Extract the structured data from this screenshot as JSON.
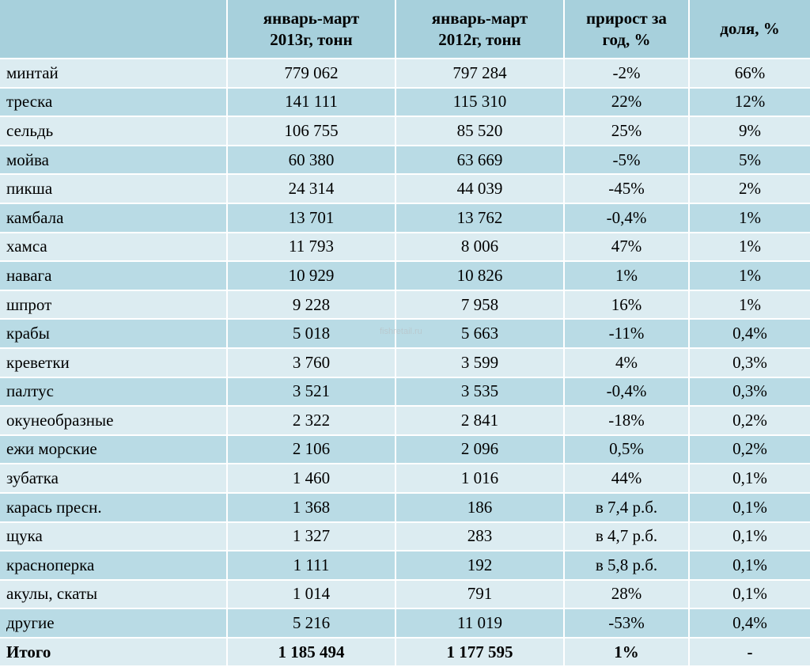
{
  "headers": [
    "",
    "январь-март\n2013г, тонн",
    "январь-март\n2012г, тонн",
    "прирост за\nгод, %",
    "доля, %"
  ],
  "rows": [
    [
      "минтай",
      "779 062",
      "797 284",
      "-2%",
      "66%"
    ],
    [
      "треска",
      "141 111",
      "115 310",
      "22%",
      "12%"
    ],
    [
      "сельдь",
      "106 755",
      "85 520",
      "25%",
      "9%"
    ],
    [
      "мойва",
      "60 380",
      "63 669",
      "-5%",
      "5%"
    ],
    [
      "пикша",
      "24 314",
      "44 039",
      "-45%",
      "2%"
    ],
    [
      "камбала",
      "13 701",
      "13 762",
      "-0,4%",
      "1%"
    ],
    [
      "хамса",
      "11 793",
      "8 006",
      "47%",
      "1%"
    ],
    [
      "навага",
      "10 929",
      "10 826",
      "1%",
      "1%"
    ],
    [
      "шпрот",
      "9 228",
      "7 958",
      "16%",
      "1%"
    ],
    [
      "крабы",
      "5 018",
      "5 663",
      "-11%",
      "0,4%"
    ],
    [
      "креветки",
      "3 760",
      "3 599",
      "4%",
      "0,3%"
    ],
    [
      "палтус",
      "3 521",
      "3 535",
      "-0,4%",
      "0,3%"
    ],
    [
      "окунеобразные",
      "2 322",
      "2 841",
      "-18%",
      "0,2%"
    ],
    [
      "ежи морские",
      "2 106",
      "2 096",
      "0,5%",
      "0,2%"
    ],
    [
      "зубатка",
      "1 460",
      "1 016",
      "44%",
      "0,1%"
    ],
    [
      "карась пресн.",
      "1 368",
      "186",
      "в 7,4 р.б.",
      "0,1%"
    ],
    [
      "щука",
      "1 327",
      "283",
      "в 4,7 р.б.",
      "0,1%"
    ],
    [
      "красноперка",
      "1 111",
      "192",
      "в 5,8 р.б.",
      "0,1%"
    ],
    [
      "акулы, скаты",
      "1 014",
      "791",
      "28%",
      "0,1%"
    ],
    [
      "другие",
      "5 216",
      "11 019",
      "-53%",
      "0,4%"
    ]
  ],
  "total": [
    "Итого",
    "1 185 494",
    "1 177 595",
    "1%",
    "-"
  ],
  "watermark": "fishretail.ru",
  "colors": {
    "header_bg": "#a7d0dc",
    "row_light": "#dcecf1",
    "row_dark": "#b9dbe5",
    "border": "#ffffff"
  }
}
